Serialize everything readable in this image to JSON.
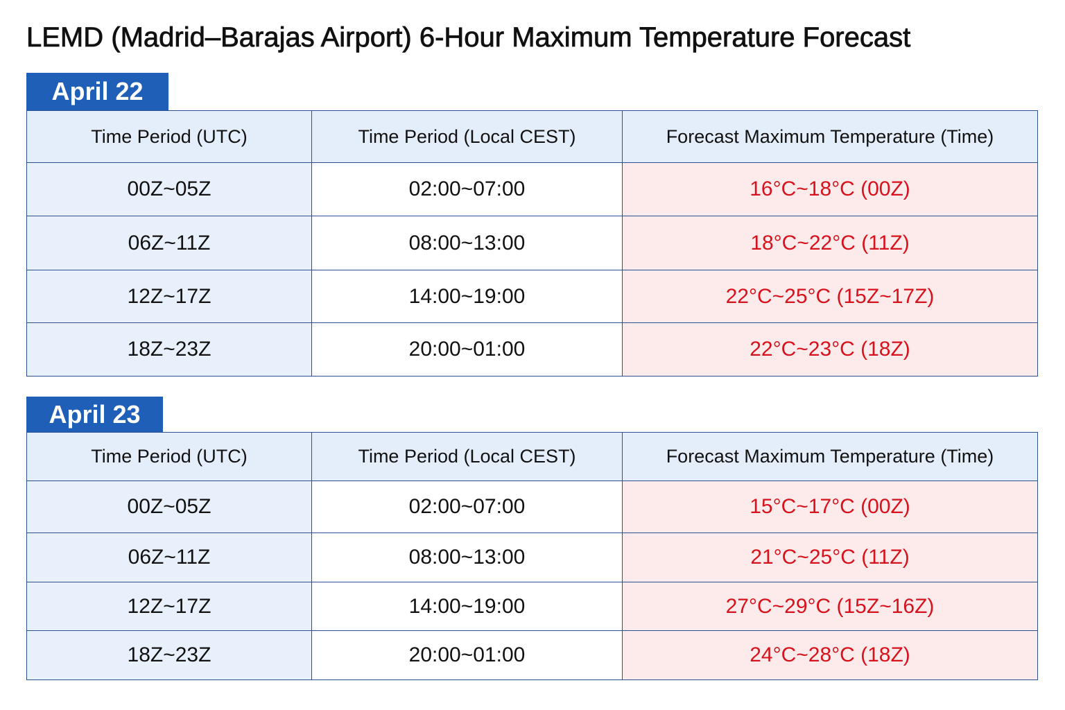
{
  "title": "LEMD (Madrid–Barajas Airport) 6-Hour Maximum Temperature Forecast",
  "sections": [
    {
      "date": "April 22",
      "header": [
        "Time Period (UTC)",
        "Time Period (Local CEST)",
        "Forecast Maximum Temperature (Time)"
      ],
      "rows": [
        [
          "00Z~05Z",
          "02:00~07:00",
          "16°C~18°C (00Z)"
        ],
        [
          "06Z~11Z",
          "08:00~13:00",
          "18°C~22°C (11Z)"
        ],
        [
          "12Z~17Z",
          "14:00~19:00",
          "22°C~25°C (15Z~17Z)"
        ],
        [
          "18Z~23Z",
          "20:00~01:00",
          "22°C~23°C (18Z)"
        ]
      ]
    },
    {
      "date": "April 23",
      "header": [
        "Time Period (UTC)",
        "Time Period (Local CEST)",
        "Forecast Maximum Temperature (Time)"
      ],
      "rows": [
        [
          "00Z~05Z",
          "02:00~07:00",
          "15°C~17°C (00Z)"
        ],
        [
          "06Z~11Z",
          "08:00~13:00",
          "21°C~25°C (11Z)"
        ],
        [
          "12Z~17Z",
          "14:00~19:00",
          "27°C~29°C (15Z~16Z)"
        ],
        [
          "18Z~23Z",
          "20:00~01:00",
          "24°C~28°C (18Z)"
        ]
      ]
    }
  ]
}
